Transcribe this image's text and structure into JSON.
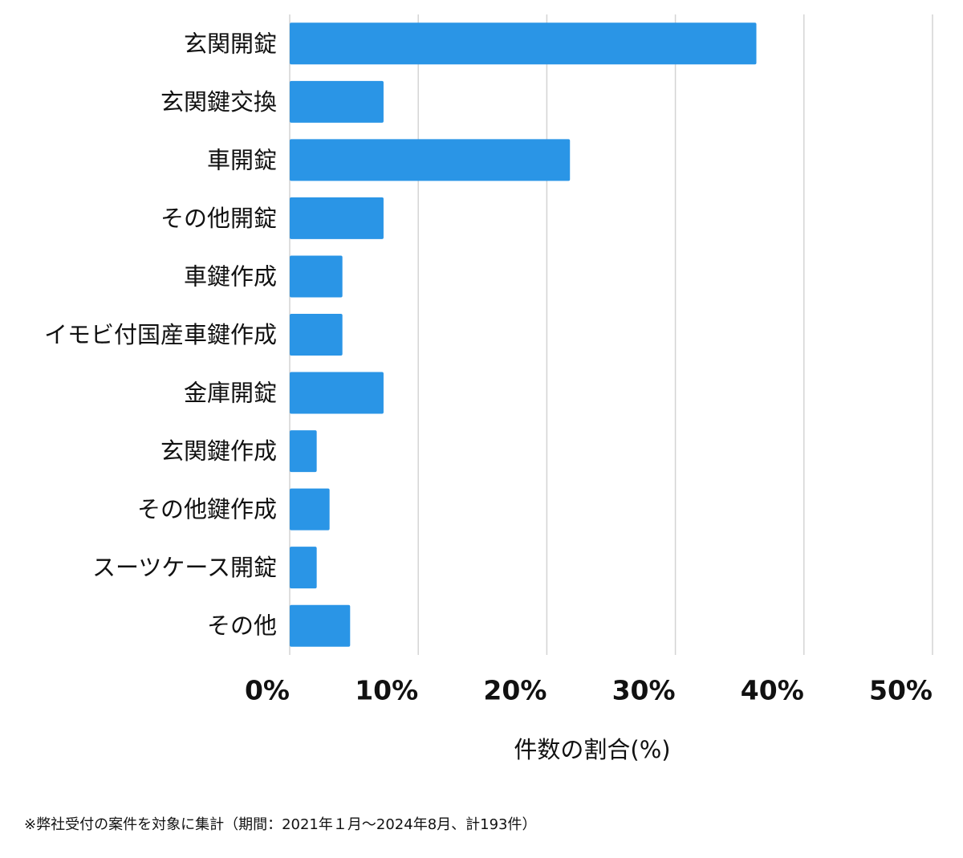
{
  "chart_data": {
    "type": "bar",
    "orientation": "horizontal",
    "categories": [
      "玄関開錠",
      "玄関鍵交換",
      "車開錠",
      "その他開錠",
      "車鍵作成",
      "イモビ付国産車鍵作成",
      "金庫開錠",
      "玄関鍵作成",
      "その他鍵作成",
      "スーツケース開錠",
      "その他"
    ],
    "values": [
      36.3,
      7.3,
      21.8,
      7.3,
      4.1,
      4.1,
      7.3,
      2.1,
      3.1,
      2.1,
      4.7
    ],
    "color": "#2a95e6",
    "xlim": [
      0,
      50
    ],
    "xticks": [
      {
        "value": 0,
        "label": "0%"
      },
      {
        "value": 10,
        "label": "10%"
      },
      {
        "value": 20,
        "label": "20%"
      },
      {
        "value": 30,
        "label": "30%"
      },
      {
        "value": 40,
        "label": "40%"
      },
      {
        "value": 50,
        "label": "50%"
      }
    ],
    "x_label": "件数の割合(%)",
    "grid": true,
    "note": "※弊社受付の案件を対象に集計（期間：2021年１月〜2024年8月、計193件）"
  }
}
